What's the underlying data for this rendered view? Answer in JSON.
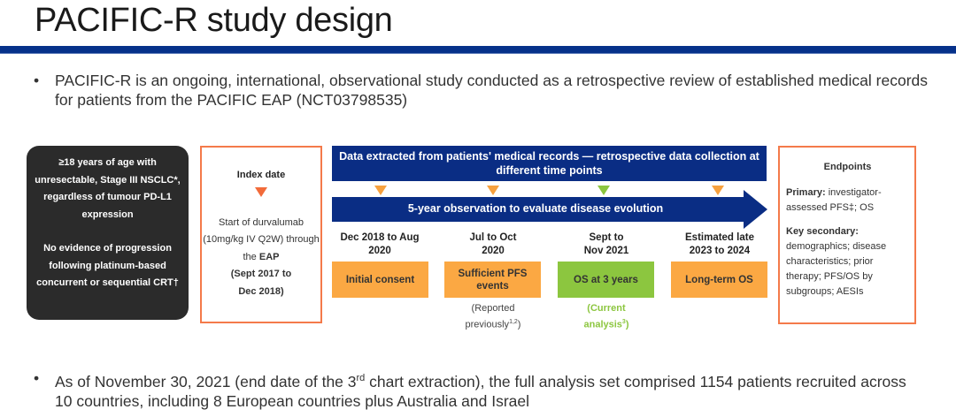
{
  "title": "PACIFIC-R study design",
  "bullets": [
    "PACIFIC-R is an ongoing, international, observational study conducted as a retrospective review of established medical records for patients from the PACIFIC EAP (NCT03798535)",
    "As of November 30, 2021 (end date of the 3rd chart extraction), the full analysis set comprised 1154 patients recruited across 10 countries, including 8 European countries plus Australia and Israel"
  ],
  "bullet2_parts": {
    "before": "As of November 30, 2021 (end date of the 3",
    "sup": "rd",
    "after": " chart extraction), the full analysis set comprised 1154 patients recruited across 10 countries, including 8 European countries plus Australia and Israel"
  },
  "eligibility": {
    "criterion1": "≥18 years of age with unresectable, Stage III NSCLC*, regardless of tumour PD-L1 expression",
    "criterion2": "No evidence of progression following platinum-based concurrent or sequential CRT†"
  },
  "index": {
    "heading": "Index date",
    "text": "Start of durvalumab (10mg/kg IV Q2W) through the",
    "bold": "EAP",
    "period": "(Sept 2017 to Dec 2018)"
  },
  "banner": "Data extracted from patients' medical records — retrospective data collection at different time points",
  "arrow_label": "5-year observation to evaluate disease evolution",
  "timepoints": [
    {
      "date": "Dec 2018 to Aug 2020",
      "label": "Initial consent",
      "note": "",
      "color": "#fba843",
      "marker": "#f7a13e"
    },
    {
      "date": "Jul to Oct 2020",
      "label": "Sufficient PFS events",
      "note": "(Reported previously1,2)",
      "color": "#fba843",
      "marker": "#f7a13e"
    },
    {
      "date": "Sept to Nov 2021",
      "label": "OS at 3 years",
      "note": "(Current analysis3)",
      "color": "#8cc63f",
      "marker": "#8cc63f"
    },
    {
      "date": "Estimated late 2023 to 2024",
      "label": "Long-term OS",
      "note": "",
      "color": "#fba843",
      "marker": "#f7a13e"
    }
  ],
  "notes": {
    "n1": {
      "a": "(Reported previously",
      "sup": "1,2",
      "b": ")"
    },
    "n2": {
      "a": "(Current analysis",
      "sup": "3",
      "b": ")",
      "color": "#8cc63f"
    }
  },
  "endpoints": {
    "heading": "Endpoints",
    "primary_label": "Primary:",
    "primary": "investigator-assessed PFS‡; OS",
    "secondary_label": "Key secondary:",
    "secondary": "demographics; disease characteristics; prior therapy; PFS/OS by subgroups; AESIs"
  },
  "colors": {
    "brand_blue": "#0a2d84",
    "orange": "#fba843",
    "green": "#8cc63f",
    "border": "#f47a4a"
  }
}
